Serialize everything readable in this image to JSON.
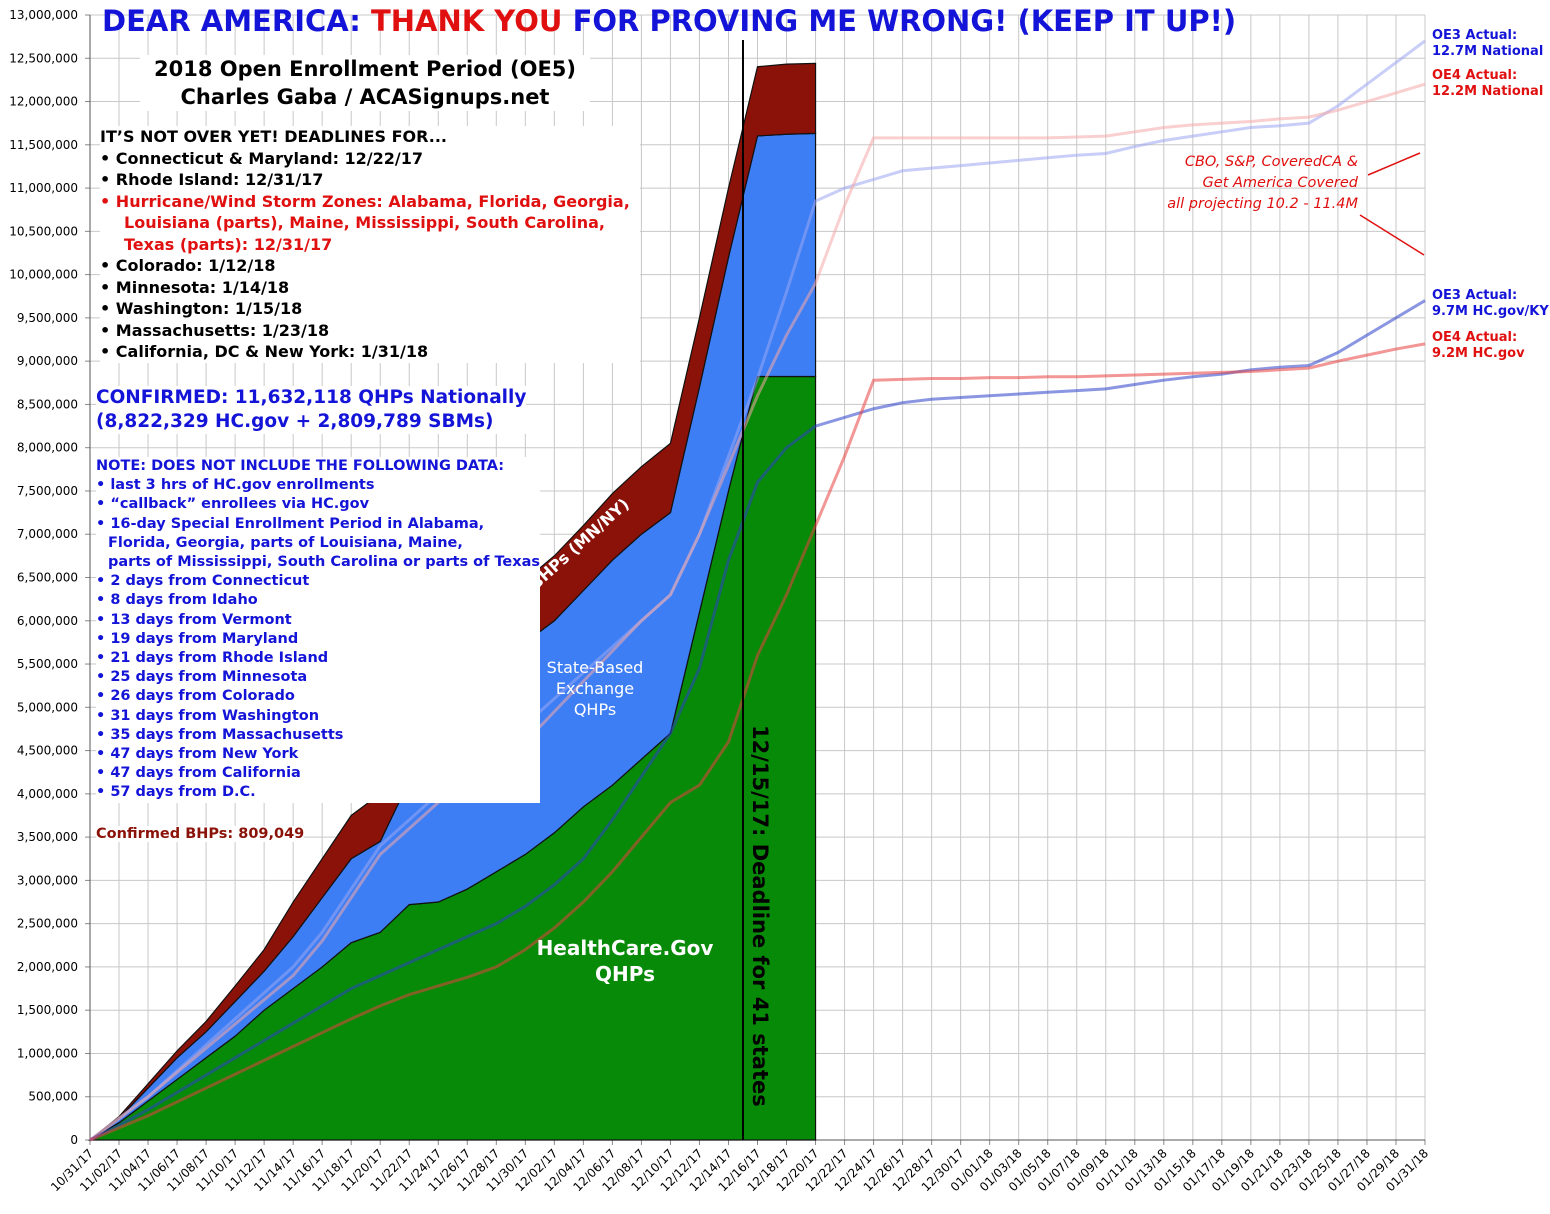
{
  "chart_data": {
    "type": "area",
    "title": {
      "parts": [
        {
          "text": "DEAR AMERICA: ",
          "color": "#1414d8"
        },
        {
          "text": "THANK YOU",
          "color": "#e01010"
        },
        {
          "text": " FOR PROVING ME WRONG! (KEEP IT UP!)",
          "color": "#1414d8"
        }
      ]
    },
    "subtitle": "2018 Open Enrollment Period (OE5)\nCharles Gaba / ACASignups.net",
    "deadlines_heading": "IT’S NOT OVER YET! DEADLINES FOR...",
    "deadlines": [
      {
        "text": "• Connecticut & Maryland: 12/22/17",
        "color": "#000000"
      },
      {
        "text": "• Rhode Island: 12/31/17",
        "color": "#000000"
      },
      {
        "text": "• Hurricane/Wind Storm Zones: Alabama, Florida, Georgia,\nLouisiana (parts), Maine, Mississippi, South Carolina,\nTexas (parts): 12/31/17",
        "color": "#e01010"
      },
      {
        "text": "• Colorado: 1/12/18",
        "color": "#000000"
      },
      {
        "text": "• Minnesota: 1/14/18",
        "color": "#000000"
      },
      {
        "text": "• Washington: 1/15/18",
        "color": "#000000"
      },
      {
        "text": "• Massachusetts: 1/23/18",
        "color": "#000000"
      },
      {
        "text": "• California, DC & New York: 1/31/18",
        "color": "#000000"
      }
    ],
    "confirmed": "CONFIRMED: 11,632,118 QHPs Nationally\n(8,822,329 HC.gov + 2,809,789 SBMs)",
    "note_heading": "NOTE: DOES NOT INCLUDE THE FOLLOWING DATA:",
    "notes": [
      "• last 3 hrs of HC.gov enrollments",
      "• “callback” enrollees via HC.gov",
      "• 16-day Special Enrollment Period in Alabama,\nFlorida, Georgia, parts of Louisiana, Maine,\nparts of Mississippi, South Carolina or parts of Texas",
      "• 2 days from Connecticut",
      "• 8 days from Idaho",
      "• 13 days from Vermont",
      "• 19 days from Maryland",
      "• 21 days from Rhode Island",
      "• 25 days from Minnesota",
      "• 26 days from Colorado",
      "• 31 days from Washington",
      "• 35 days from Massachusetts",
      "• 47 days from New York",
      "• 47 days from California",
      "• 57 days from D.C."
    ],
    "confirmed_bhps": "Confirmed BHPs: 809,049",
    "projection_note": "CBO, S&P, CoveredCA &\nGet America Covered\nall projecting 10.2 - 11.4M",
    "deadline_label": "12/15/17: Deadline for 41 states",
    "categories": [
      "10/31/17",
      "11/02/17",
      "11/04/17",
      "11/06/17",
      "11/08/17",
      "11/10/17",
      "11/12/17",
      "11/14/17",
      "11/16/17",
      "11/18/17",
      "11/20/17",
      "11/22/17",
      "11/24/17",
      "11/26/17",
      "11/28/17",
      "11/30/17",
      "12/02/17",
      "12/04/17",
      "12/06/17",
      "12/08/17",
      "12/10/17",
      "12/12/17",
      "12/14/17",
      "12/16/17",
      "12/18/17",
      "12/20/17",
      "12/22/17",
      "12/24/17",
      "12/26/17",
      "12/28/17",
      "12/30/17",
      "01/01/18",
      "01/03/18",
      "01/05/18",
      "01/07/18",
      "01/09/18",
      "01/11/18",
      "01/13/18",
      "01/15/18",
      "01/17/18",
      "01/19/18",
      "01/21/18",
      "01/23/18",
      "01/25/18",
      "01/27/18",
      "01/29/18",
      "01/31/18"
    ],
    "series": [
      {
        "name": "HealthCare.Gov\nQHPs",
        "type": "area",
        "color": "#078a07",
        "values": [
          0,
          200000,
          450000,
          700000,
          950000,
          1200000,
          1500000,
          1750000,
          2000000,
          2280000,
          2400000,
          2720000,
          2750000,
          2900000,
          3100000,
          3300000,
          3550000,
          3850000,
          4100000,
          4400000,
          4700000,
          6100000,
          7500000,
          8822329,
          8822329,
          8822329,
          null,
          null,
          null,
          null,
          null,
          null,
          null,
          null,
          null,
          null,
          null,
          null,
          null,
          null,
          null,
          null,
          null,
          null,
          null,
          null,
          null
        ]
      },
      {
        "name": "State-Based\nExchange\nQHPs",
        "type": "area",
        "color": "#3d7ef5",
        "values": [
          0,
          50000,
          150000,
          250000,
          300000,
          400000,
          450000,
          600000,
          800000,
          970000,
          1050000,
          1430000,
          1650000,
          1700000,
          2100000,
          2450000,
          2450000,
          2500000,
          2600000,
          2600000,
          2550000,
          2600000,
          2700000,
          2780000,
          2800000,
          2809789,
          null,
          null,
          null,
          null,
          null,
          null,
          null,
          null,
          null,
          null,
          null,
          null,
          null,
          null,
          null,
          null,
          null,
          null,
          null,
          null,
          null
        ]
      },
      {
        "name": "BHPs (MN/NY)",
        "type": "area",
        "color": "#8b1208",
        "values": [
          0,
          20000,
          50000,
          80000,
          120000,
          180000,
          250000,
          400000,
          450000,
          500000,
          550000,
          600000,
          650000,
          700000,
          720000,
          720000,
          750000,
          750000,
          770000,
          780000,
          800000,
          800000,
          800000,
          800000,
          810000,
          809049,
          null,
          null,
          null,
          null,
          null,
          null,
          null,
          null,
          null,
          null,
          null,
          null,
          null,
          null,
          null,
          null,
          null,
          null,
          null,
          null,
          null
        ]
      },
      {
        "name": "OE3 Actual:\n12.7M National",
        "type": "line",
        "color": "#9aa6f0",
        "values": [
          0,
          250000,
          500000,
          800000,
          1100000,
          1400000,
          1700000,
          2000000,
          2400000,
          2900000,
          3400000,
          3700000,
          4000000,
          4200000,
          4500000,
          4800000,
          5100000,
          5400000,
          5700000,
          6000000,
          6300000,
          7000000,
          7900000,
          8800000,
          9800000,
          10850000,
          11000000,
          11100000,
          11200000,
          11230000,
          11260000,
          11290000,
          11320000,
          11350000,
          11380000,
          11400000,
          11480000,
          11550000,
          11600000,
          11650000,
          11700000,
          11720000,
          11750000,
          11950000,
          12200000,
          12450000,
          12700000
        ]
      },
      {
        "name": "OE4 Actual:\n12.2M National",
        "type": "line",
        "color": "#f4a8a8",
        "values": [
          0,
          250000,
          500000,
          780000,
          1060000,
          1340000,
          1620000,
          1900000,
          2300000,
          2800000,
          3300000,
          3600000,
          3900000,
          4100000,
          4300000,
          4600000,
          4950000,
          5300000,
          5650000,
          6000000,
          6300000,
          7000000,
          7800000,
          8600000,
          9300000,
          9900000,
          10800000,
          11580000,
          11580000,
          11580000,
          11580000,
          11580000,
          11580000,
          11580000,
          11590000,
          11600000,
          11650000,
          11700000,
          11730000,
          11750000,
          11770000,
          11800000,
          11820000,
          11900000,
          12000000,
          12100000,
          12200000
        ]
      },
      {
        "name": "OE3 Actual:\n9.7M HC.gov/KY",
        "type": "line",
        "color": "#2a40c8",
        "values": [
          0,
          170000,
          350000,
          550000,
          750000,
          950000,
          1150000,
          1350000,
          1550000,
          1750000,
          1900000,
          2050000,
          2200000,
          2350000,
          2500000,
          2700000,
          2950000,
          3250000,
          3700000,
          4200000,
          4700000,
          5450000,
          6700000,
          7600000,
          8000000,
          8250000,
          8350000,
          8450000,
          8520000,
          8560000,
          8580000,
          8600000,
          8620000,
          8640000,
          8660000,
          8680000,
          8730000,
          8780000,
          8820000,
          8850000,
          8900000,
          8930000,
          8950000,
          9100000,
          9300000,
          9500000,
          9700000
        ]
      },
      {
        "name": "OE4 Actual:\n9.2M HC.gov",
        "type": "line",
        "color": "#e84040",
        "values": [
          0,
          140000,
          280000,
          440000,
          600000,
          760000,
          920000,
          1080000,
          1240000,
          1400000,
          1550000,
          1680000,
          1780000,
          1880000,
          2000000,
          2200000,
          2450000,
          2750000,
          3100000,
          3500000,
          3900000,
          4100000,
          4600000,
          5600000,
          6300000,
          7100000,
          7900000,
          8780000,
          8790000,
          8800000,
          8800000,
          8810000,
          8810000,
          8820000,
          8820000,
          8830000,
          8840000,
          8850000,
          8860000,
          8870000,
          8880000,
          8900000,
          8920000,
          9000000,
          9070000,
          9140000,
          9200000
        ]
      }
    ],
    "ylim": [
      0,
      13000000
    ],
    "yticks": [
      0,
      {
        "value": 500000,
        "label": "500,000"
      },
      {
        "value": 1000000,
        "label": "1,000,000"
      },
      {
        "value": 1500000,
        "label": "1,500,000"
      },
      {
        "value": 2000000,
        "label": "2,000,000"
      },
      {
        "value": 2500000,
        "label": "2,500,000"
      },
      {
        "value": 3000000,
        "label": "3,000,000"
      },
      {
        "value": 3500000,
        "label": "3,500,000"
      },
      {
        "value": 4000000,
        "label": "4,000,000"
      },
      {
        "value": 4500000,
        "label": "4,500,000"
      },
      {
        "value": 5000000,
        "label": "5,000,000"
      },
      {
        "value": 5500000,
        "label": "5,500,000"
      },
      {
        "value": 6000000,
        "label": "6,000,000"
      },
      {
        "value": 6500000,
        "label": "6,500,000"
      },
      {
        "value": 7000000,
        "label": "7,000,000"
      },
      {
        "value": 7500000,
        "label": "7,500,000"
      },
      {
        "value": 8000000,
        "label": "8,000,000"
      },
      {
        "value": 8500000,
        "label": "8,500,000"
      },
      {
        "value": 9000000,
        "label": "9,000,000"
      },
      {
        "value": 9500000,
        "label": "9,500,000"
      },
      {
        "value": 10000000,
        "label": "10,000,000"
      },
      {
        "value": 10500000,
        "label": "10,500,000"
      },
      {
        "value": 11000000,
        "label": "11,000,000"
      },
      {
        "value": 11500000,
        "label": "11,500,000"
      },
      {
        "value": 12000000,
        "label": "12,000,000"
      },
      {
        "value": 12500000,
        "label": "12,500,000"
      },
      {
        "value": 13000000,
        "label": "13,000,000"
      }
    ],
    "grid": true
  }
}
